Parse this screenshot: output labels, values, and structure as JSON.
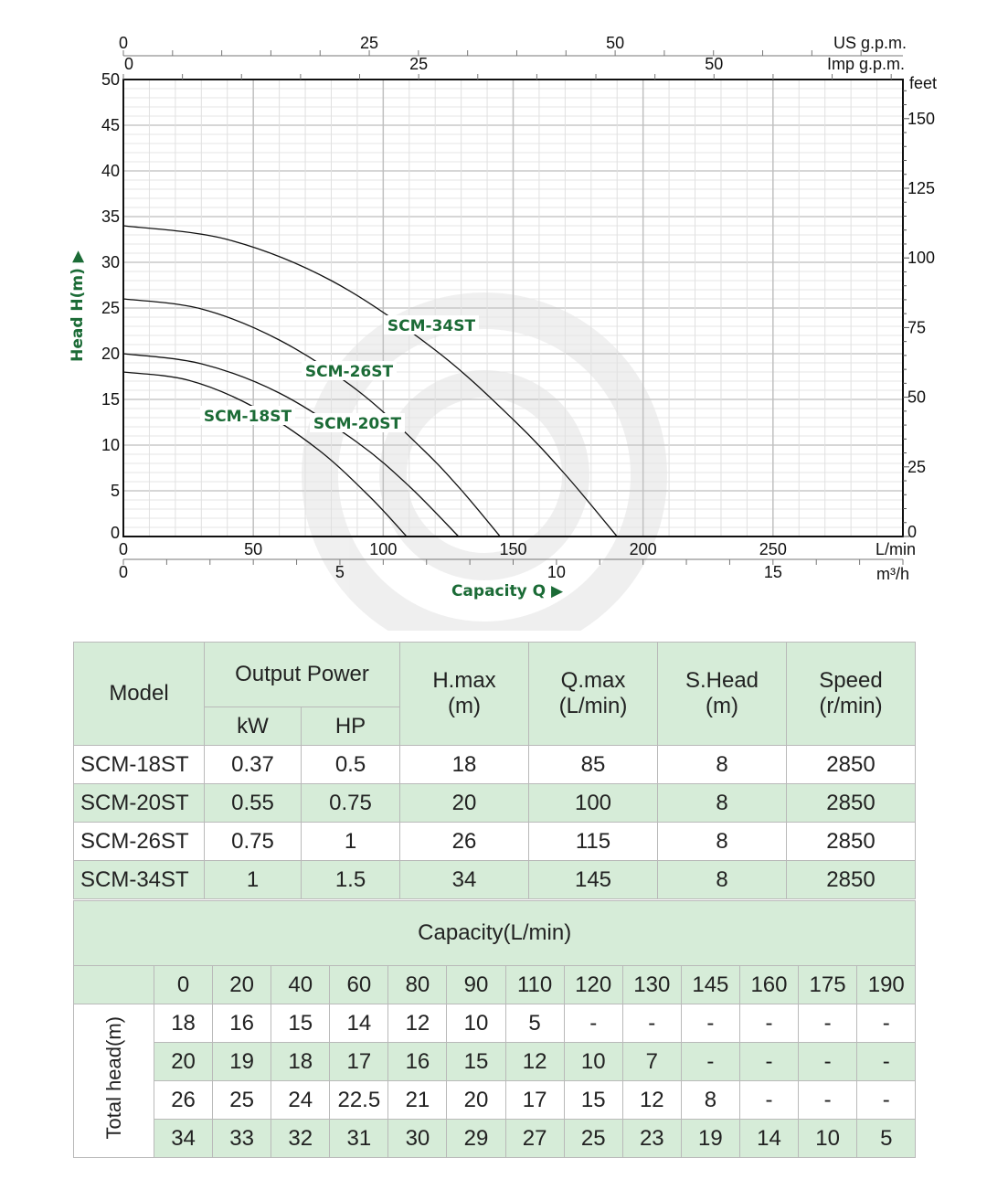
{
  "chart_data": {
    "type": "line",
    "xlabel": "Capacity Q",
    "ylabel": "Head H(m)",
    "xlim": [
      0,
      300
    ],
    "ylim": [
      0,
      50
    ],
    "x_units": "L/min",
    "y_units": "m",
    "x_ticks": [
      0,
      50,
      100,
      150,
      200,
      250
    ],
    "y_ticks": [
      0,
      5,
      10,
      15,
      20,
      25,
      30,
      35,
      40,
      45,
      50
    ],
    "secondary_axes": {
      "us_gpm": {
        "label": "US g.p.m.",
        "ticks": [
          0,
          25,
          50
        ]
      },
      "imp_gpm": {
        "label": "Imp g.p.m.",
        "ticks": [
          0,
          25,
          50
        ]
      },
      "m3h": {
        "label": "m3/h",
        "ticks": [
          0,
          5,
          10,
          15
        ]
      },
      "feet": {
        "label": "feet",
        "ticks": [
          0,
          25,
          50,
          75,
          100,
          125,
          150
        ]
      }
    },
    "grid": true,
    "series": [
      {
        "name": "SCM-34ST",
        "points": [
          [
            0,
            34
          ],
          [
            40,
            32.5
          ],
          [
            80,
            28
          ],
          [
            120,
            20.4
          ],
          [
            150,
            12.8
          ],
          [
            170,
            6.8
          ],
          [
            190,
            0
          ]
        ]
      },
      {
        "name": "SCM-26ST",
        "points": [
          [
            0,
            26
          ],
          [
            30,
            24.9
          ],
          [
            60,
            21.5
          ],
          [
            90,
            16
          ],
          [
            115,
            9.6
          ],
          [
            130,
            5.1
          ],
          [
            145,
            0
          ]
        ]
      },
      {
        "name": "SCM-20ST",
        "points": [
          [
            0,
            20
          ],
          [
            30,
            18.9
          ],
          [
            60,
            15.7
          ],
          [
            90,
            10.3
          ],
          [
            110,
            5.5
          ],
          [
            129,
            0
          ]
        ]
      },
      {
        "name": "SCM-18ST",
        "points": [
          [
            0,
            18
          ],
          [
            25,
            17.1
          ],
          [
            50,
            14.2
          ],
          [
            75,
            9.5
          ],
          [
            95,
            4.3
          ],
          [
            109,
            0
          ]
        ]
      }
    ]
  },
  "colors": {
    "accent": "#1b6b36",
    "table_green": "#d6ecd8"
  },
  "spec_table": {
    "headers": {
      "model": "Model",
      "output_power": "Output Power",
      "kw": "kW",
      "hp": "HP",
      "hmax": [
        "H.max",
        "(m)"
      ],
      "qmax": [
        "Q.max",
        "(L/min)"
      ],
      "shead": [
        "S.Head",
        "(m)"
      ],
      "speed": [
        "Speed",
        "(r/min)"
      ]
    },
    "rows": [
      [
        "SCM-18ST",
        "0.37",
        "0.5",
        "18",
        "85",
        "8",
        "2850"
      ],
      [
        "SCM-20ST",
        "0.55",
        "0.75",
        "20",
        "100",
        "8",
        "2850"
      ],
      [
        "SCM-26ST",
        "0.75",
        "1",
        "26",
        "115",
        "8",
        "2850"
      ],
      [
        "SCM-34ST",
        "1",
        "1.5",
        "34",
        "145",
        "8",
        "2850"
      ]
    ]
  },
  "capacity_table": {
    "title": "Capacity(L/min)",
    "side_label": "Total head(m)",
    "capacities": [
      "0",
      "20",
      "40",
      "60",
      "80",
      "90",
      "110",
      "120",
      "130",
      "145",
      "160",
      "175",
      "190"
    ],
    "rows": [
      [
        "18",
        "16",
        "15",
        "14",
        "12",
        "10",
        "5",
        "-",
        "-",
        "-",
        "-",
        "-",
        "-"
      ],
      [
        "20",
        "19",
        "18",
        "17",
        "16",
        "15",
        "12",
        "10",
        "7",
        "-",
        "-",
        "-",
        "-"
      ],
      [
        "26",
        "25",
        "24",
        "22.5",
        "21",
        "20",
        "17",
        "15",
        "12",
        "8",
        "-",
        "-",
        "-"
      ],
      [
        "34",
        "33",
        "32",
        "31",
        "30",
        "29",
        "27",
        "25",
        "23",
        "19",
        "14",
        "10",
        "5"
      ]
    ]
  }
}
